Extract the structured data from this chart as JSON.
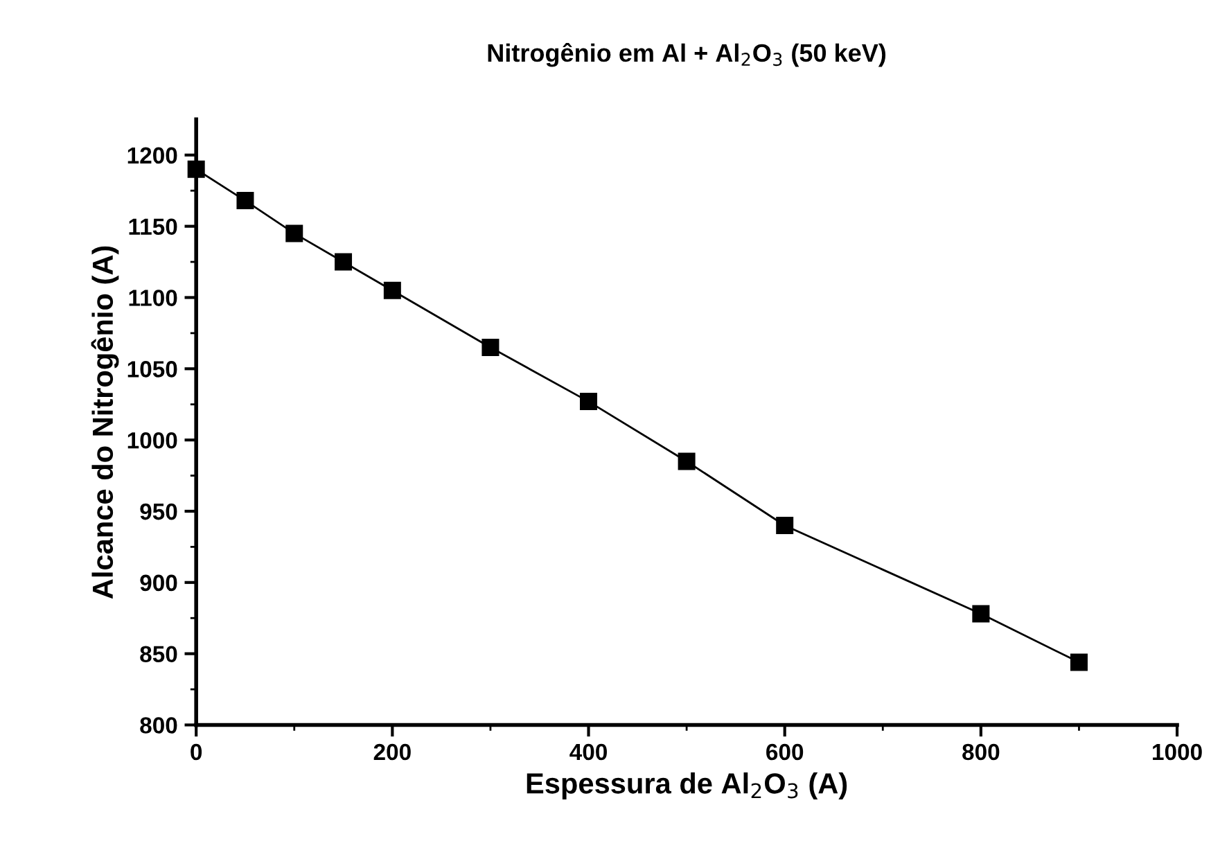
{
  "chart_data": {
    "type": "line",
    "title": "Nitrogênio em Al + Al$_{2}$O$_{3}$ (50 keV)",
    "xlabel": "Espessura de Al$_{2}$O$_{3}$ (A)",
    "ylabel": "Alcance do Nitrogênio (A)",
    "x": [
      0,
      50,
      100,
      150,
      200,
      300,
      400,
      500,
      600,
      800,
      900
    ],
    "series": [
      {
        "color": "#000000",
        "values": [
          1190,
          1168,
          1145,
          1125,
          1105,
          1065,
          1027,
          985,
          940,
          878,
          844
        ]
      }
    ],
    "marker": "square",
    "line_style": "solid",
    "xlim": [
      0,
      1000
    ],
    "xticks": [
      0,
      200,
      400,
      600,
      800,
      1000
    ],
    "ylim": [
      800,
      1225
    ],
    "yticks": [
      800,
      850,
      900,
      950,
      1000,
      1050,
      1100,
      1150,
      1200
    ]
  }
}
